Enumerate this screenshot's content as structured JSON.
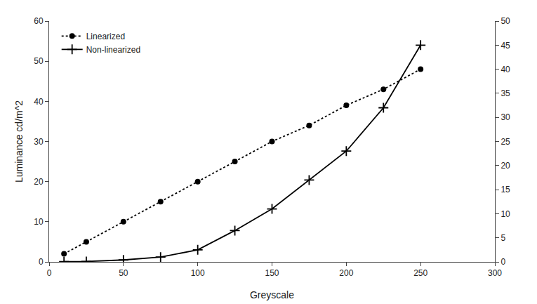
{
  "chart_data": {
    "type": "line",
    "x": [
      10,
      25,
      50,
      75,
      100,
      125,
      150,
      175,
      200,
      225,
      250
    ],
    "xlabel": "Greyscale",
    "ylabel": "Luminance cd/m^2",
    "xlim": [
      0,
      300
    ],
    "xticks": [
      0,
      50,
      100,
      150,
      200,
      250,
      300
    ],
    "ylim": [
      0,
      60
    ],
    "yticks": [
      0,
      10,
      20,
      30,
      40,
      50,
      60
    ],
    "y2lim": [
      0,
      50
    ],
    "y2ticks": [
      0,
      5,
      10,
      15,
      20,
      25,
      30,
      35,
      40,
      45,
      50
    ],
    "grid": false,
    "legend": "upper left",
    "series": [
      {
        "name": "Linearized",
        "color": "#000000",
        "line_style": "dotted",
        "marker": "circle",
        "values": [
          2,
          5,
          10,
          15,
          20,
          25,
          30,
          34,
          39,
          43,
          48
        ]
      },
      {
        "name": "Non-linearized",
        "color": "#000000",
        "line_style": "solid",
        "marker": "plus",
        "axis": "y2",
        "values": [
          0.04,
          0.08,
          0.4,
          1.0,
          2.5,
          6.5,
          11.0,
          17.0,
          23.0,
          32.0,
          45.0
        ]
      }
    ]
  }
}
